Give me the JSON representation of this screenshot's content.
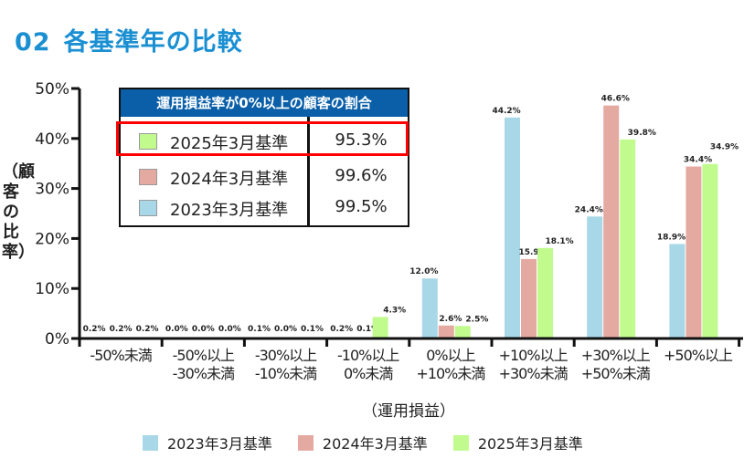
{
  "page_title": {
    "number": "02",
    "text": "各基準年の比較"
  },
  "colors": {
    "title": "#1a8fd2",
    "table_header": "#0a5fa8",
    "highlight": "#ff0000",
    "2023": "#a8d8e8",
    "2024": "#e4aaa2",
    "2025": "#c1fb8e"
  },
  "summary_table": {
    "header": "運用損益率が0%以上の顧客の割合",
    "rows": [
      {
        "label": "2025年3月基準",
        "value": "95.3%",
        "color": "#c1fb8e",
        "highlighted": true
      },
      {
        "label": "2024年3月基準",
        "value": "99.6%",
        "color": "#e4aaa2",
        "highlighted": false
      },
      {
        "label": "2023年3月基準",
        "value": "99.5%",
        "color": "#a8d8e8",
        "highlighted": false
      }
    ]
  },
  "chart_data": {
    "type": "bar",
    "xlabel": "（運用損益）",
    "ylabel": "（顧客の比率）",
    "ylim": [
      0,
      50
    ],
    "yticks": [
      "0%",
      "10%",
      "20%",
      "30%",
      "40%",
      "50%"
    ],
    "categories": [
      "-50%未満",
      "-50%以上\n-30%未満",
      "-30%以上\n-10%未満",
      "-10%以上\n0%未満",
      "0%以上\n+10%未満",
      "+10%以上\n+30%未満",
      "+30%以上\n+50%未満",
      "+50%以上"
    ],
    "series": [
      {
        "name": "2023年3月基準",
        "color": "#a8d8e8",
        "values": [
          0.2,
          0.0,
          0.1,
          0.2,
          12.0,
          44.2,
          24.4,
          18.9
        ]
      },
      {
        "name": "2024年3月基準",
        "color": "#e4aaa2",
        "values": [
          0.2,
          0.0,
          0.0,
          0.1,
          2.6,
          15.9,
          46.6,
          34.4
        ]
      },
      {
        "name": "2025年3月基準",
        "color": "#c1fb8e",
        "values": [
          0.2,
          0.0,
          0.1,
          4.3,
          2.5,
          18.1,
          39.8,
          34.9
        ]
      }
    ],
    "legend": "bottom",
    "grid": false
  }
}
